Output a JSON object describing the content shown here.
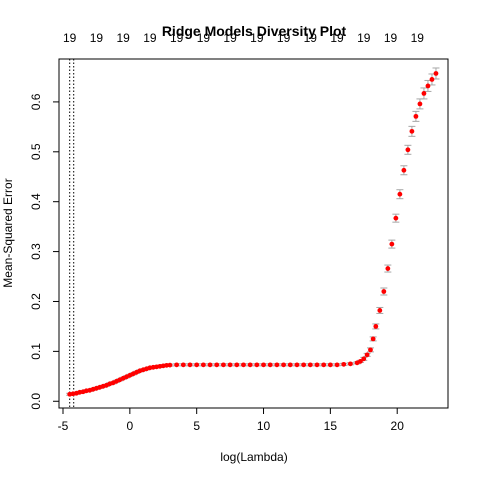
{
  "chart_data": {
    "type": "scatter",
    "title": "Ridge Models Diversity Plot",
    "xlabel": "log(Lambda)",
    "ylabel": "Mean-Squared Error",
    "xlim": [
      -5.3,
      23.8
    ],
    "ylim": [
      -0.0135,
      0.686
    ],
    "x_ticks": [
      -5,
      0,
      5,
      10,
      15,
      20
    ],
    "y_ticks": [
      0.0,
      0.1,
      0.2,
      0.3,
      0.4,
      0.5,
      0.6
    ],
    "y_tick_labels": [
      "0.0",
      "0.1",
      "0.2",
      "0.3",
      "0.4",
      "0.5",
      "0.6"
    ],
    "top_axis": {
      "x": [
        -4.5,
        -2.5,
        -0.5,
        1.5,
        3.5,
        5.5,
        7.5,
        9.5,
        11.5,
        13.5,
        15.5,
        17.5,
        19.5,
        21.5
      ],
      "labels": [
        "19",
        "19",
        "19",
        "19",
        "19",
        "19",
        "19",
        "19",
        "19",
        "19",
        "19",
        "19",
        "19",
        "19"
      ]
    },
    "vertical_lines": [
      -4.5,
      -4.2
    ],
    "series": [
      {
        "x": [
          -4.5,
          -4.25,
          -4.0,
          -3.75,
          -3.5,
          -3.25,
          -3.0,
          -2.75,
          -2.5,
          -2.25,
          -2.0,
          -1.75,
          -1.5,
          -1.25,
          -1.0,
          -0.75,
          -0.5,
          -0.25,
          0.0,
          0.25,
          0.5,
          0.75,
          1.0,
          1.25,
          1.5,
          1.75,
          2.0,
          2.25,
          2.5,
          2.75,
          3.0,
          3.5,
          4.0,
          4.5,
          5.0,
          5.5,
          6.0,
          6.5,
          7.0,
          7.5,
          8.0,
          8.5,
          9.0,
          9.5,
          10.0,
          10.5,
          11.0,
          11.5,
          12.0,
          12.5,
          13.0,
          13.5,
          14.0,
          14.5,
          15.0,
          15.5,
          16.0,
          16.5,
          17.0,
          17.25,
          17.5,
          17.75,
          18.0,
          18.2,
          18.4,
          18.7,
          19.0,
          19.3,
          19.6,
          19.9,
          20.2,
          20.5,
          20.8,
          21.1,
          21.4,
          21.7,
          22.0,
          22.3,
          22.6,
          22.9
        ],
        "y": [
          0.014,
          0.015,
          0.016,
          0.018,
          0.019,
          0.021,
          0.022,
          0.024,
          0.026,
          0.028,
          0.03,
          0.032,
          0.035,
          0.037,
          0.04,
          0.043,
          0.046,
          0.049,
          0.052,
          0.055,
          0.058,
          0.061,
          0.063,
          0.065,
          0.067,
          0.068,
          0.069,
          0.07,
          0.071,
          0.072,
          0.0725,
          0.073,
          0.073,
          0.073,
          0.073,
          0.073,
          0.073,
          0.073,
          0.073,
          0.073,
          0.073,
          0.073,
          0.073,
          0.073,
          0.073,
          0.073,
          0.073,
          0.073,
          0.073,
          0.073,
          0.073,
          0.073,
          0.073,
          0.073,
          0.073,
          0.073,
          0.074,
          0.075,
          0.077,
          0.08,
          0.085,
          0.093,
          0.103,
          0.125,
          0.15,
          0.182,
          0.22,
          0.266,
          0.315,
          0.367,
          0.415,
          0.463,
          0.504,
          0.541,
          0.571,
          0.596,
          0.617,
          0.632,
          0.645,
          0.657
        ],
        "err": [
          0.002,
          0.002,
          0.002,
          0.002,
          0.002,
          0.002,
          0.002,
          0.002,
          0.002,
          0.002,
          0.002,
          0.002,
          0.002,
          0.002,
          0.002,
          0.002,
          0.002,
          0.002,
          0.002,
          0.002,
          0.002,
          0.002,
          0.002,
          0.002,
          0.002,
          0.002,
          0.002,
          0.002,
          0.002,
          0.002,
          0.002,
          0.002,
          0.002,
          0.002,
          0.002,
          0.002,
          0.002,
          0.002,
          0.002,
          0.002,
          0.002,
          0.002,
          0.002,
          0.002,
          0.002,
          0.002,
          0.002,
          0.002,
          0.002,
          0.002,
          0.002,
          0.002,
          0.002,
          0.002,
          0.002,
          0.002,
          0.002,
          0.002,
          0.002,
          0.002,
          0.003,
          0.003,
          0.004,
          0.004,
          0.005,
          0.006,
          0.007,
          0.007,
          0.008,
          0.008,
          0.009,
          0.009,
          0.009,
          0.01,
          0.01,
          0.01,
          0.011,
          0.011,
          0.011,
          0.011
        ]
      }
    ],
    "point_color": "#ff0000",
    "errorbar_color": "#a6a6a6",
    "grid": false
  }
}
